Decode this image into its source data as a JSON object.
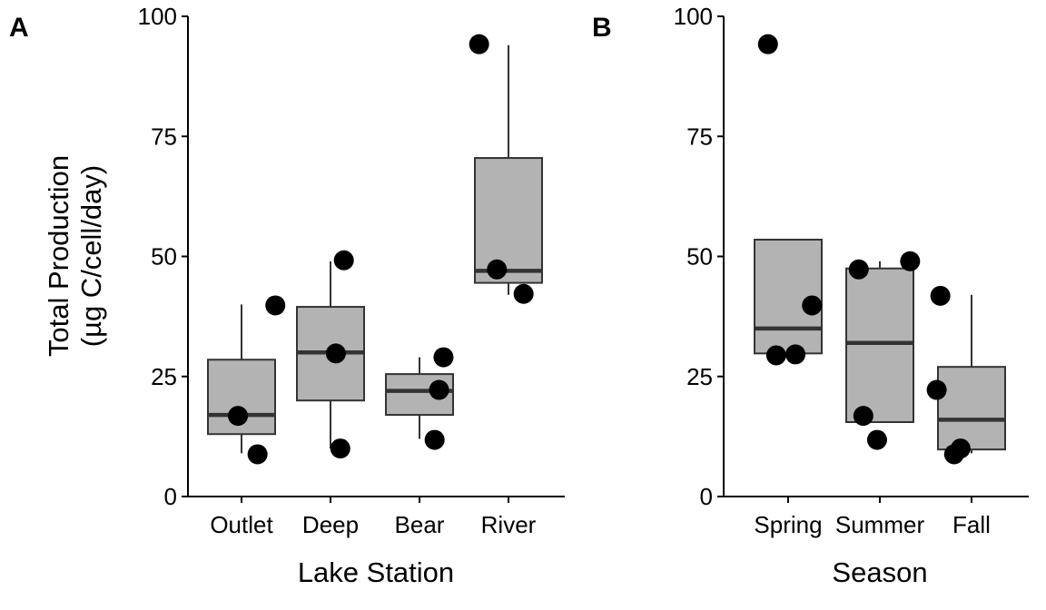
{
  "chart_data": [
    {
      "type": "box",
      "panel_label": "A",
      "xlabel": "Lake Station",
      "ylabel": [
        "Total Production",
        "(µg C/cell/day)"
      ],
      "ylim": [
        0,
        100
      ],
      "yticks": [
        0,
        25,
        50,
        75,
        100
      ],
      "box_color": "#b3b3b3",
      "point_color": "#000000",
      "categories": [
        "Outlet",
        "Deep",
        "Bear",
        "River"
      ],
      "boxes": [
        {
          "category": "Outlet",
          "whisker_low": 9,
          "q1": 13,
          "median": 17,
          "q3": 28.5,
          "whisker_high": 40
        },
        {
          "category": "Deep",
          "whisker_low": 10,
          "q1": 20,
          "median": 30,
          "q3": 39.5,
          "whisker_high": 49
        },
        {
          "category": "Bear",
          "whisker_low": 12,
          "q1": 17,
          "median": 22,
          "q3": 25.5,
          "whisker_high": 29
        },
        {
          "category": "River",
          "whisker_low": 42,
          "q1": 44.5,
          "median": 47,
          "q3": 70.5,
          "whisker_high": 94
        }
      ],
      "points": [
        {
          "category": "Outlet",
          "y": 16.8,
          "jitter": -0.04
        },
        {
          "category": "Outlet",
          "y": 8.8,
          "jitter": 0.18
        },
        {
          "category": "Outlet",
          "y": 39.8,
          "jitter": 0.38
        },
        {
          "category": "Deep",
          "y": 49.2,
          "jitter": 0.15
        },
        {
          "category": "Deep",
          "y": 29.8,
          "jitter": 0.06
        },
        {
          "category": "Deep",
          "y": 10.0,
          "jitter": 0.11
        },
        {
          "category": "Bear",
          "y": 29.0,
          "jitter": 0.27
        },
        {
          "category": "Bear",
          "y": 22.2,
          "jitter": 0.22
        },
        {
          "category": "Bear",
          "y": 11.8,
          "jitter": 0.17
        },
        {
          "category": "River",
          "y": 94.2,
          "jitter": -0.33
        },
        {
          "category": "River",
          "y": 47.3,
          "jitter": -0.13
        },
        {
          "category": "River",
          "y": 42.2,
          "jitter": 0.17
        }
      ]
    },
    {
      "type": "box",
      "panel_label": "B",
      "xlabel": "Season",
      "ylabel": "",
      "ylim": [
        0,
        100
      ],
      "yticks": [
        0,
        25,
        50,
        75,
        100
      ],
      "box_color": "#b3b3b3",
      "point_color": "#000000",
      "categories": [
        "Spring",
        "Summer",
        "Fall"
      ],
      "boxes": [
        {
          "category": "Spring",
          "whisker_low": 29.8,
          "q1": 29.8,
          "median": 35,
          "q3": 53.5,
          "whisker_high": 53.5
        },
        {
          "category": "Summer",
          "whisker_low": 15.5,
          "q1": 15.5,
          "median": 32,
          "q3": 47.5,
          "whisker_high": 49
        },
        {
          "category": "Fall",
          "whisker_low": 9,
          "q1": 9.8,
          "median": 16,
          "q3": 27,
          "whisker_high": 42
        }
      ],
      "points": [
        {
          "category": "Spring",
          "y": 94.2,
          "jitter": -0.22
        },
        {
          "category": "Spring",
          "y": 39.8,
          "jitter": 0.26
        },
        {
          "category": "Spring",
          "y": 29.4,
          "jitter": -0.13
        },
        {
          "category": "Spring",
          "y": 29.6,
          "jitter": 0.08
        },
        {
          "category": "Summer",
          "y": 47.3,
          "jitter": -0.23
        },
        {
          "category": "Summer",
          "y": 49.0,
          "jitter": 0.33
        },
        {
          "category": "Summer",
          "y": 16.8,
          "jitter": -0.18
        },
        {
          "category": "Summer",
          "y": 11.8,
          "jitter": -0.03
        },
        {
          "category": "Fall",
          "y": 41.8,
          "jitter": -0.34
        },
        {
          "category": "Fall",
          "y": 22.2,
          "jitter": -0.38
        },
        {
          "category": "Fall",
          "y": 10.0,
          "jitter": -0.12
        },
        {
          "category": "Fall",
          "y": 8.8,
          "jitter": -0.19
        }
      ]
    }
  ]
}
